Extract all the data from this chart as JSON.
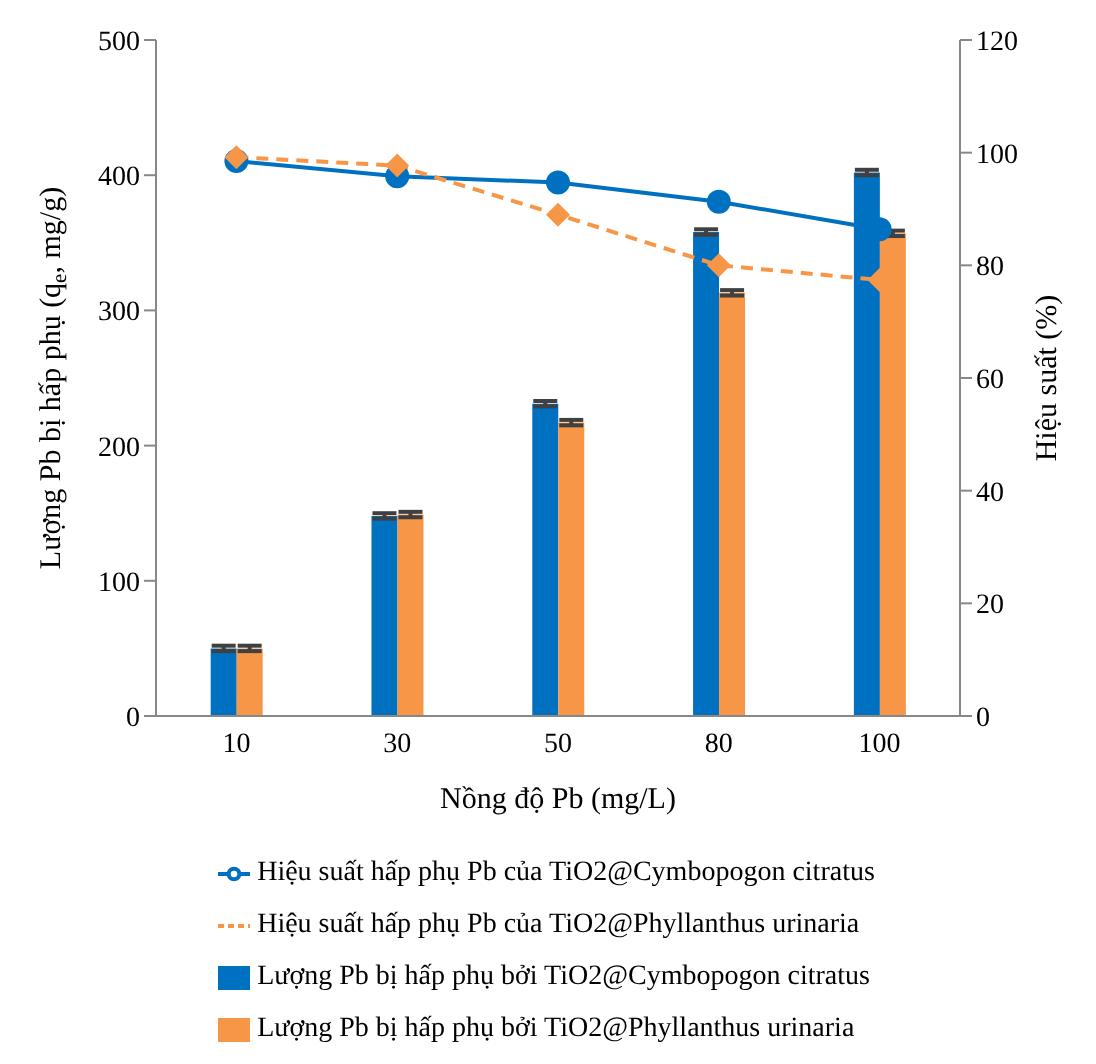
{
  "chart_data": {
    "type": "bar",
    "xlabel": "Nồng độ Pb (mg/L)",
    "ylabel": "Lượng Pb bị hấp phụ (q$_{e}$, mg/g)",
    "y2label": "Hiệu suất (%)",
    "categories": [
      "10",
      "30",
      "50",
      "80",
      "100"
    ],
    "ylim": [
      0,
      500
    ],
    "yticks": [
      0,
      100,
      200,
      300,
      400,
      500
    ],
    "y2lim": [
      0,
      120
    ],
    "y2ticks": [
      0,
      20,
      40,
      60,
      80,
      100,
      120
    ],
    "legend": "bottom",
    "series": [
      {
        "name": "Lượng Pb bị hấp phụ bởi TiO2@Cymbopogon citratus",
        "color": "#0070c0",
        "values": [
          50,
          148,
          231,
          358,
          402
        ],
        "errors": [
          2,
          2,
          2,
          2,
          2
        ]
      },
      {
        "name": "Lượng Pb bị hấp phụ bởi TiO2@Phyllanthus urinaria",
        "color": "#f79646",
        "values": [
          50,
          149,
          217,
          313,
          357
        ],
        "errors": [
          2,
          2,
          2,
          2,
          2
        ]
      },
      {
        "name": "Hiệu suất hấp phụ Pb của TiO2@Cymbopogon citratus",
        "type": "line",
        "axis": "y2",
        "color": "#0070c0",
        "marker": "circle",
        "line_style": "solid",
        "values": [
          98.5,
          95.8,
          94.7,
          91.3,
          86.4
        ]
      },
      {
        "name": "Hiệu suất hấp phụ Pb của TiO2@Phyllanthus urinaria",
        "type": "line",
        "axis": "y2",
        "color": "#f79646",
        "marker": "diamond",
        "line_style": "dashed",
        "values": [
          99.2,
          97.7,
          89,
          80,
          77.4
        ]
      }
    ]
  }
}
